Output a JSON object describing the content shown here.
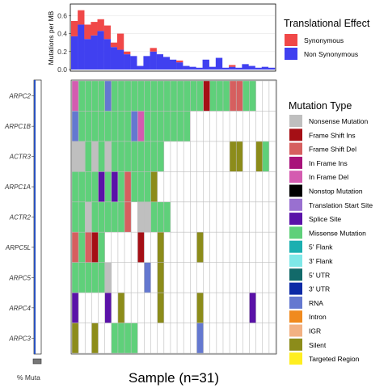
{
  "chart_data": [
    {
      "type": "bar",
      "stacked": true,
      "ylabel": "Mutations per MB",
      "ylim": [
        0,
        0.72
      ],
      "yticks": [
        0.0,
        0.2,
        0.4,
        0.6
      ],
      "tick_labels": [
        "0.0",
        "0.2",
        "0.4",
        "0.6"
      ],
      "legend_title": "Translational Effect",
      "legend_position": "right",
      "series": [
        {
          "name": "Non Synonymous",
          "color": "#4040f0",
          "values": [
            0.37,
            0.5,
            0.34,
            0.38,
            0.43,
            0.34,
            0.25,
            0.22,
            0.17,
            0.15,
            0.04,
            0.15,
            0.2,
            0.17,
            0.14,
            0.11,
            0.08,
            0.04,
            0.03,
            0.02,
            0.11,
            0.03,
            0.13,
            0.02,
            0.03,
            0.02,
            0.06,
            0.04,
            0.02,
            0.03,
            0.02
          ]
        },
        {
          "name": "Synonymous",
          "color": "#f04848",
          "values": [
            0.17,
            0.16,
            0.16,
            0.15,
            0.13,
            0.15,
            0.05,
            0.18,
            0.03,
            0.0,
            0.0,
            0.0,
            0.04,
            0.0,
            0.0,
            0.0,
            0.02,
            0.0,
            0.0,
            0.0,
            0.0,
            0.0,
            0.0,
            0.0,
            0.02,
            0.0,
            0.0,
            0.0,
            0.0,
            0.0,
            0.0
          ]
        }
      ]
    },
    {
      "type": "heatmap",
      "xlabel": "Sample (n=31)",
      "percent_label": "% Muta",
      "legend_title": "Mutation Type",
      "legend_position": "right",
      "genes": [
        "ARPC2",
        "ARPC1B",
        "ACTR3",
        "ARPC1A",
        "ACTR2",
        "ARPC5L",
        "ARPC5",
        "ARPC4",
        "ARPC3"
      ],
      "n_samples": 31,
      "types": [
        {
          "name": "Nonsense Mutation",
          "color": "#bfbfbf"
        },
        {
          "name": "Frame Shift Ins",
          "color": "#a50f15"
        },
        {
          "name": "Frame Shift Del",
          "color": "#d65f5f"
        },
        {
          "name": "In Frame Ins",
          "color": "#a8127a"
        },
        {
          "name": "In Frame Del",
          "color": "#d45bb0"
        },
        {
          "name": "Nonstop Mutation",
          "color": "#000000"
        },
        {
          "name": "Translation Start Site",
          "color": "#9970d0"
        },
        {
          "name": "Splice Site",
          "color": "#5a12a8"
        },
        {
          "name": "Missense Mutation",
          "color": "#5fd07a"
        },
        {
          "name": "5' Flank",
          "color": "#1bafb0"
        },
        {
          "name": "3' Flank",
          "color": "#7fe8e8"
        },
        {
          "name": "5' UTR",
          "color": "#126a6a"
        },
        {
          "name": "3' UTR",
          "color": "#0c2aa6"
        },
        {
          "name": "RNA",
          "color": "#6478d0"
        },
        {
          "name": "Intron",
          "color": "#f08a1e"
        },
        {
          "name": "IGR",
          "color": "#f2b182"
        },
        {
          "name": "Silent",
          "color": "#8c8c1a"
        },
        {
          "name": "Targeted Region",
          "color": "#ffee20"
        }
      ],
      "cells": {
        "ARPC2": [
          "In Frame Del",
          "Missense Mutation",
          "Missense Mutation",
          "Missense Mutation",
          "Missense Mutation",
          "RNA",
          "Missense Mutation",
          "Missense Mutation",
          "Missense Mutation",
          "Missense Mutation",
          "Missense Mutation",
          "Missense Mutation",
          "Missense Mutation",
          "Missense Mutation",
          "Missense Mutation",
          "Missense Mutation",
          "Missense Mutation",
          "Missense Mutation",
          "Missense Mutation",
          "Missense Mutation",
          "Frame Shift Ins",
          "Missense Mutation",
          "Missense Mutation",
          "Missense Mutation",
          "Frame Shift Del",
          "Frame Shift Del",
          "Missense Mutation",
          "Missense Mutation",
          "",
          "",
          ""
        ],
        "ARPC1B": [
          "RNA",
          "Missense Mutation",
          "Missense Mutation",
          "Missense Mutation",
          "Missense Mutation",
          "Missense Mutation",
          "Missense Mutation",
          "Missense Mutation",
          "Missense Mutation",
          "RNA",
          "In Frame Del",
          "Missense Mutation",
          "Missense Mutation",
          "Missense Mutation",
          "Missense Mutation",
          "Missense Mutation",
          "Missense Mutation",
          "Missense Mutation",
          "",
          "",
          "",
          "",
          "",
          "",
          "",
          "",
          "",
          "",
          "",
          "",
          ""
        ],
        "ACTR3": [
          "Nonsense Mutation",
          "Nonsense Mutation",
          "Missense Mutation",
          "Nonsense Mutation",
          "Missense Mutation",
          "Nonsense Mutation",
          "Missense Mutation",
          "Missense Mutation",
          "Missense Mutation",
          "Missense Mutation",
          "Missense Mutation",
          "Missense Mutation",
          "Missense Mutation",
          "Missense Mutation",
          "",
          "",
          "",
          "",
          "",
          "",
          "",
          "",
          "",
          "",
          "Silent",
          "Silent",
          "",
          "",
          "Silent",
          "Missense Mutation",
          ""
        ],
        "ARPC1A": [
          "Missense Mutation",
          "Missense Mutation",
          "Missense Mutation",
          "Missense Mutation",
          "Splice Site",
          "Missense Mutation",
          "Splice Site",
          "Missense Mutation",
          "Frame Shift Del",
          "Missense Mutation",
          "Missense Mutation",
          "Missense Mutation",
          "Silent",
          "",
          "",
          "",
          "",
          "",
          "",
          "",
          "",
          "",
          "",
          "",
          "",
          "",
          "",
          "",
          "",
          "",
          ""
        ],
        "ACTR2": [
          "Missense Mutation",
          "Missense Mutation",
          "Nonsense Mutation",
          "Missense Mutation",
          "Missense Mutation",
          "Missense Mutation",
          "Missense Mutation",
          "Missense Mutation",
          "Frame Shift Del",
          "",
          "Nonsense Mutation",
          "Nonsense Mutation",
          "Missense Mutation",
          "Missense Mutation",
          "Missense Mutation",
          "",
          "",
          "",
          "",
          "",
          "",
          "",
          "",
          "",
          "",
          "",
          "",
          "",
          "",
          "",
          ""
        ],
        "ARPC5L": [
          "Frame Shift Del",
          "Missense Mutation",
          "Frame Shift Del",
          "Frame Shift Ins",
          "Missense Mutation",
          "",
          "",
          "",
          "",
          "",
          "Frame Shift Ins",
          "",
          "",
          "Silent",
          "",
          "",
          "",
          "",
          "",
          "Silent",
          "",
          "",
          "",
          "",
          "",
          "",
          "",
          "",
          "",
          "",
          ""
        ],
        "ARPC5": [
          "Missense Mutation",
          "Missense Mutation",
          "Missense Mutation",
          "Missense Mutation",
          "Missense Mutation",
          "Nonsense Mutation",
          "",
          "",
          "",
          "",
          "",
          "RNA",
          "",
          "Silent",
          "",
          "",
          "",
          "",
          "",
          "",
          "",
          "",
          "",
          "",
          "",
          "",
          "",
          "",
          "",
          "",
          ""
        ],
        "ARPC4": [
          "Splice Site",
          "",
          "",
          "",
          "",
          "Splice Site",
          "",
          "Silent",
          "",
          "",
          "",
          "",
          "",
          "Silent",
          "",
          "",
          "",
          "",
          "",
          "Silent",
          "",
          "",
          "",
          "",
          "",
          "",
          "",
          "Splice Site",
          "",
          "",
          ""
        ],
        "ARPC3": [
          "Silent",
          "",
          "",
          "Silent",
          "",
          "",
          "Missense Mutation",
          "Missense Mutation",
          "Missense Mutation",
          "Missense Mutation",
          "",
          "",
          "",
          "",
          "",
          "",
          "",
          "",
          "",
          "RNA",
          "",
          "",
          "",
          "",
          "",
          "",
          "",
          "",
          "",
          "",
          ""
        ]
      }
    }
  ],
  "tmb_legend": [
    "Synonymous",
    "Non Synonymous"
  ]
}
